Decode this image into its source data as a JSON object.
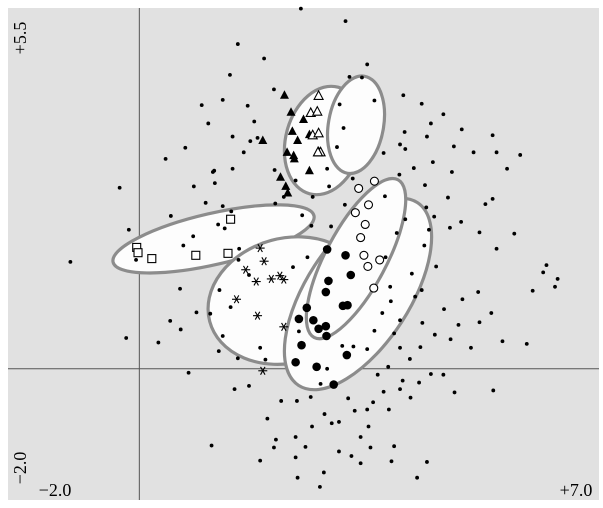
{
  "chart_data": {
    "type": "scatter",
    "title": "",
    "xlabel": "",
    "ylabel": "",
    "xlim": [
      -2.0,
      7.0
    ],
    "ylim": [
      -2.0,
      5.5
    ],
    "tick_labels": {
      "y_top": "+5.5",
      "y_bottom": "−2.0",
      "x_left": "−2.0",
      "x_right": "+7.0"
    },
    "axes_through_origin": true,
    "background_color": "#e1e1e1",
    "ellipse_color": "#8c8c8c",
    "groups": [
      {
        "marker": "open-square",
        "ellipse": {
          "cx": 1.13,
          "cy": 1.98,
          "rx": 1.57,
          "ry": 0.39,
          "angle_deg": -13
        },
        "points": [
          [
            -0.04,
            1.85
          ],
          [
            0.19,
            1.68
          ],
          [
            0.86,
            1.73
          ],
          [
            1.35,
            1.76
          ],
          [
            1.39,
            2.28
          ],
          [
            -0.02,
            1.77
          ]
        ]
      },
      {
        "marker": "asterisk",
        "ellipse": {
          "cx": 2.26,
          "cy": 1.04,
          "rx": 1.23,
          "ry": 0.95,
          "angle_deg": -15
        },
        "points": [
          [
            1.84,
            1.84
          ],
          [
            1.62,
            1.51
          ],
          [
            1.78,
            1.33
          ],
          [
            1.48,
            1.06
          ],
          [
            1.8,
            0.81
          ],
          [
            2.2,
            1.36
          ],
          [
            2.01,
            1.37
          ],
          [
            1.9,
            1.64
          ],
          [
            2.14,
            1.42
          ],
          [
            2.2,
            0.64
          ],
          [
            1.88,
            -0.03
          ]
        ]
      },
      {
        "marker": "filled-triangle",
        "ellipse": {
          "cx": 2.81,
          "cy": 3.48,
          "rx": 0.58,
          "ry": 0.84,
          "angle_deg": 15
        },
        "points": [
          [
            2.33,
            3.62
          ],
          [
            1.88,
            3.48
          ],
          [
            2.23,
            2.78
          ],
          [
            2.59,
            3.57
          ],
          [
            2.31,
            3.91
          ],
          [
            2.35,
            3.25
          ],
          [
            2.59,
            3.02
          ],
          [
            2.36,
            3.2
          ],
          [
            2.25,
            3.3
          ],
          [
            2.15,
            2.92
          ],
          [
            2.41,
            3.48
          ],
          [
            2.5,
            3.8
          ],
          [
            2.21,
            4.17
          ],
          [
            2.26,
            2.68
          ]
        ]
      },
      {
        "marker": "open-triangle",
        "ellipse": {
          "cx": 3.3,
          "cy": 3.72,
          "rx": 0.42,
          "ry": 0.75,
          "angle_deg": 10
        },
        "points": [
          [
            2.61,
            3.9
          ],
          [
            2.64,
            3.56
          ],
          [
            2.71,
            3.92
          ],
          [
            2.73,
            3.59
          ],
          [
            2.73,
            3.3
          ],
          [
            2.76,
            3.3
          ],
          [
            2.73,
            4.16
          ],
          [
            2.72,
            3.3
          ]
        ]
      },
      {
        "marker": "filled-circle",
        "ellipse": {
          "cx": 3.33,
          "cy": 1.14,
          "rx": 1.66,
          "ry": 0.79,
          "angle_deg": -57
        },
        "points": [
          [
            2.86,
            1.82
          ],
          [
            2.88,
            1.34
          ],
          [
            2.84,
            1.17
          ],
          [
            2.55,
            0.93
          ],
          [
            2.65,
            0.74
          ],
          [
            2.84,
            0.65
          ],
          [
            2.85,
            0.5
          ],
          [
            2.73,
            0.61
          ],
          [
            2.43,
            0.76
          ],
          [
            2.47,
            0.36
          ],
          [
            3.1,
            0.96
          ],
          [
            3.14,
            1.73
          ],
          [
            3.22,
            1.43
          ],
          [
            3.17,
            0.97
          ],
          [
            3.16,
            0.21
          ],
          [
            2.38,
            0.1
          ],
          [
            2.96,
            -0.24
          ],
          [
            2.7,
            0.03
          ]
        ]
      },
      {
        "marker": "open-circle",
        "ellipse": {
          "cx": 3.3,
          "cy": 1.68,
          "rx": 1.36,
          "ry": 0.46,
          "angle_deg": -62
        },
        "points": [
          [
            3.29,
            2.38
          ],
          [
            3.37,
            2.0
          ],
          [
            3.42,
            1.73
          ],
          [
            3.48,
            1.56
          ],
          [
            3.57,
            1.23
          ],
          [
            3.66,
            1.66
          ],
          [
            3.44,
            2.2
          ],
          [
            3.58,
            2.86
          ],
          [
            3.34,
            2.75
          ],
          [
            3.49,
            2.5
          ]
        ]
      }
    ],
    "background_points": [
      [
        0.4,
        3.2
      ],
      [
        0.7,
        3.37
      ],
      [
        0.47,
        0.73
      ],
      [
        0.62,
        1.22
      ],
      [
        0.95,
        4.02
      ],
      [
        1.27,
        4.1
      ],
      [
        1.12,
        3.0
      ],
      [
        1.42,
        3.54
      ],
      [
        1.01,
        2.53
      ],
      [
        1.3,
        2.14
      ],
      [
        1.15,
        2.83
      ],
      [
        0.82,
        2.02
      ],
      [
        1.8,
        3.52
      ],
      [
        1.27,
        2.48
      ],
      [
        1.69,
        3.47
      ],
      [
        2.07,
        2.52
      ],
      [
        1.51,
        1.66
      ],
      [
        1.39,
        0.94
      ],
      [
        1.67,
        1.43
      ],
      [
        1.21,
        0.27
      ],
      [
        1.08,
        0.84
      ],
      [
        1.45,
        -0.31
      ],
      [
        1.67,
        -0.26
      ],
      [
        1.84,
        0.32
      ],
      [
        2.4,
        -0.49
      ],
      [
        2.34,
        1.55
      ],
      [
        2.56,
        1.7
      ],
      [
        2.92,
        2.17
      ],
      [
        3.26,
        0.34
      ],
      [
        2.86,
        0.0
      ],
      [
        3.09,
        0.35
      ],
      [
        3.58,
        0.58
      ],
      [
        3.83,
        1.03
      ],
      [
        3.7,
        0.85
      ],
      [
        3.8,
        -0.62
      ],
      [
        3.97,
        -0.31
      ],
      [
        4.13,
        -0.44
      ],
      [
        4.5,
        0.52
      ],
      [
        4.28,
        0.33
      ],
      [
        4.74,
        0.45
      ],
      [
        4.41,
        2.12
      ],
      [
        4.52,
        1.56
      ],
      [
        4.73,
        2.15
      ],
      [
        5.44,
        1.83
      ],
      [
        4.92,
        1.06
      ],
      [
        5.16,
        1.17
      ],
      [
        4.8,
        -0.36
      ],
      [
        5.39,
        -0.33
      ],
      [
        5.05,
        0.32
      ],
      [
        4.38,
        -1.42
      ],
      [
        4.23,
        -1.66
      ],
      [
        3.88,
        -1.18
      ],
      [
        3.84,
        -1.41
      ],
      [
        3.52,
        -1.2
      ],
      [
        3.37,
        -1.44
      ],
      [
        2.75,
        -1.8
      ],
      [
        2.08,
        -1.08
      ],
      [
        1.95,
        -0.76
      ],
      [
        2.16,
        -0.49
      ],
      [
        1.84,
        -1.4
      ],
      [
        1.1,
        -1.17
      ],
      [
        1.27,
        0.5
      ],
      [
        0.75,
        -0.06
      ],
      [
        0.29,
        0.4
      ],
      [
        -0.16,
        2.12
      ],
      [
        -0.05,
        1.66
      ],
      [
        -0.3,
        2.76
      ],
      [
        -0.2,
        0.47
      ],
      [
        -1.05,
        1.63
      ],
      [
        1.2,
        2.2
      ],
      [
        1.52,
        1.83
      ],
      [
        0.87,
        0.86
      ],
      [
        1.5,
        0.16
      ],
      [
        0.63,
        0.6
      ],
      [
        1.92,
        0.14
      ],
      [
        3.74,
        2.63
      ],
      [
        3.96,
        2.96
      ],
      [
        3.72,
        3.29
      ],
      [
        3.97,
        3.42
      ],
      [
        4.04,
        3.61
      ],
      [
        3.58,
        4.09
      ],
      [
        3.39,
        4.44
      ],
      [
        3.2,
        4.45
      ],
      [
        3.05,
        4.03
      ],
      [
        3.11,
        3.67
      ],
      [
        3.01,
        3.38
      ],
      [
        3.25,
        2.9
      ],
      [
        2.89,
        2.78
      ],
      [
        2.86,
        3.05
      ],
      [
        2.64,
        2.62
      ],
      [
        2.38,
        2.87
      ],
      [
        2.06,
        3.03
      ],
      [
        1.59,
        3.3
      ],
      [
        1.75,
        3.77
      ],
      [
        1.65,
        4.01
      ],
      [
        1.42,
        3.05
      ],
      [
        1.14,
        3.02
      ],
      [
        1.38,
        4.48
      ],
      [
        1.05,
        3.74
      ],
      [
        1.9,
        4.73
      ],
      [
        2.05,
        4.26
      ],
      [
        1.5,
        4.95
      ],
      [
        2.46,
        5.49
      ],
      [
        3.14,
        5.3
      ],
      [
        3.47,
        4.64
      ],
      [
        4.02,
        4.17
      ],
      [
        4.05,
        3.35
      ],
      [
        4.18,
        3.06
      ],
      [
        4.35,
        2.8
      ],
      [
        4.49,
        2.32
      ],
      [
        4.37,
        2.46
      ],
      [
        5.27,
        2.51
      ],
      [
        5.18,
        2.08
      ],
      [
        5.38,
        2.59
      ],
      [
        5.09,
        3.3
      ],
      [
        4.79,
        3.39
      ],
      [
        4.76,
        3.0
      ],
      [
        4.44,
        3.74
      ],
      [
        4.38,
        3.54
      ],
      [
        4.47,
        3.15
      ],
      [
        4.63,
        3.88
      ],
      [
        4.3,
        4.04
      ],
      [
        4.91,
        3.65
      ],
      [
        5.44,
        3.3
      ],
      [
        5.38,
        3.56
      ],
      [
        5.8,
        3.26
      ],
      [
        5.6,
        3.05
      ],
      [
        4.7,
        2.61
      ],
      [
        4.9,
        2.24
      ],
      [
        5.71,
        2.06
      ],
      [
        6.2,
        1.58
      ],
      [
        6.15,
        1.47
      ],
      [
        5.99,
        1.19
      ],
      [
        6.33,
        1.25
      ],
      [
        6.37,
        1.37
      ],
      [
        5.9,
        0.38
      ],
      [
        5.53,
        0.42
      ],
      [
        5.18,
        0.71
      ],
      [
        4.86,
        0.67
      ],
      [
        5.36,
        0.85
      ],
      [
        4.64,
        0.91
      ],
      [
        4.31,
        0.7
      ],
      [
        4.2,
        1.1
      ],
      [
        4.12,
        0.15
      ],
      [
        3.79,
        0.03
      ],
      [
        4.01,
        -0.18
      ],
      [
        4.26,
        -0.21
      ],
      [
        4.44,
        -0.08
      ],
      [
        4.63,
        -0.09
      ],
      [
        3.97,
        0.32
      ],
      [
        3.47,
        -0.62
      ],
      [
        3.28,
        -0.64
      ],
      [
        3.18,
        -0.45
      ],
      [
        3.04,
        -0.81
      ],
      [
        2.82,
        -0.69
      ],
      [
        2.76,
        -0.23
      ],
      [
        2.61,
        -0.43
      ],
      [
        2.93,
        -0.83
      ],
      [
        2.53,
        -1.19
      ],
      [
        3.23,
        -1.33
      ],
      [
        3.37,
        -1.04
      ],
      [
        3.49,
        -0.88
      ],
      [
        3.56,
        -0.51
      ],
      [
        3.63,
        -0.09
      ],
      [
        3.47,
        0.3
      ],
      [
        3.72,
        -0.35
      ],
      [
        3.88,
        0.54
      ],
      [
        3.97,
        0.74
      ],
      [
        3.04,
        -1.26
      ],
      [
        2.38,
        -1.35
      ],
      [
        2.38,
        -1.04
      ],
      [
        2.81,
        -1.58
      ],
      [
        2.41,
        -1.66
      ],
      [
        2.05,
        -1.2
      ],
      [
        2.63,
        -0.88
      ],
      [
        4.34,
        1.88
      ],
      [
        4.15,
        1.45
      ],
      [
        3.92,
        2.07
      ],
      [
        4.05,
        2.28
      ],
      [
        2.2,
        2.62
      ],
      [
        1.4,
        2.4
      ],
      [
        0.83,
        2.78
      ],
      [
        0.48,
        2.33
      ],
      [
        0.67,
        1.88
      ],
      [
        1.22,
        1.2
      ],
      [
        2.43,
        0.57
      ],
      [
        3.75,
        1.7
      ],
      [
        4.3,
        1.2
      ],
      [
        3.82,
        1.25
      ],
      [
        2.48,
        2.34
      ],
      [
        2.62,
        2.18
      ],
      [
        3.13,
        2.5
      ]
    ]
  }
}
